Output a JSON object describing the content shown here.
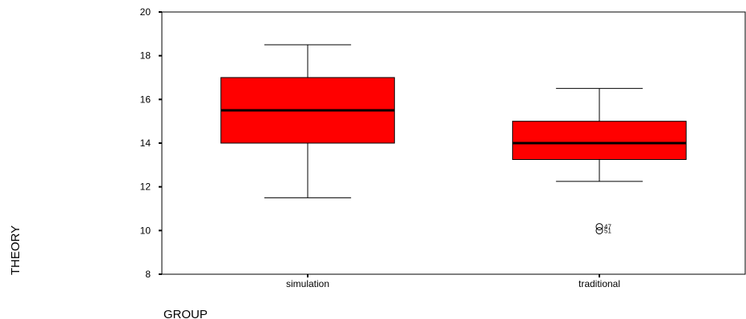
{
  "chart_data": {
    "type": "boxplot",
    "xlabel": "GROUP",
    "ylabel": "THEORY",
    "ylim": [
      8,
      20
    ],
    "yticks": [
      8,
      10,
      12,
      14,
      16,
      18,
      20
    ],
    "categories": [
      "simulation",
      "traditional"
    ],
    "boxes": [
      {
        "category": "simulation",
        "whisker_low": 11.5,
        "q1": 14.0,
        "median": 15.5,
        "q3": 17.0,
        "whisker_high": 18.5,
        "outliers": []
      },
      {
        "category": "traditional",
        "whisker_low": 12.25,
        "q1": 13.25,
        "median": 14.0,
        "q3": 15.0,
        "whisker_high": 16.5,
        "outliers": [
          {
            "value": 10.1,
            "label": "47"
          },
          {
            "value": 10.1,
            "label": "51"
          }
        ]
      }
    ],
    "box_color": "#ff0000",
    "grid": false,
    "legend": "none"
  }
}
